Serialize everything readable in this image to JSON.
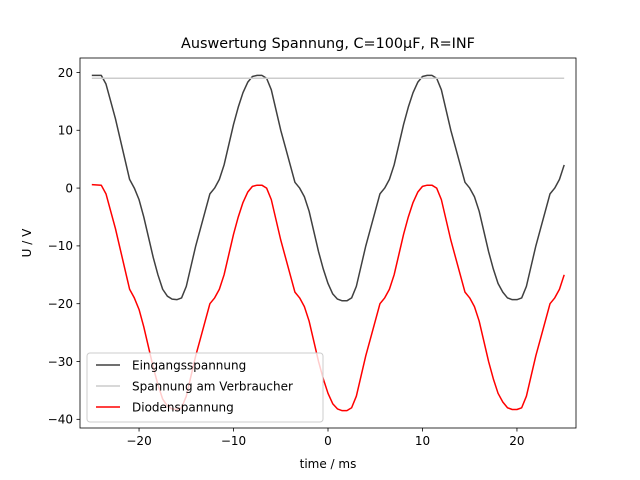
{
  "chart_data": {
    "type": "line",
    "title": "Auswertung Spannung, C=100µF, R=INF",
    "xlabel": "time / ms",
    "ylabel": "U / V",
    "xlim": [
      -26.25,
      26.25
    ],
    "ylim": [
      -41.5,
      22.5
    ],
    "xticks": [
      -20,
      -10,
      0,
      10,
      20
    ],
    "yticks": [
      20,
      10,
      0,
      -10,
      -20,
      -30,
      -40
    ],
    "grid": false,
    "legend_position": "lower left",
    "series": [
      {
        "name": "Eingangsspannung",
        "color": "#404040",
        "x": [
          -25,
          -24,
          -23.5,
          -23,
          -22.5,
          -22,
          -21.5,
          -21,
          -20.5,
          -20,
          -19.5,
          -19,
          -18.5,
          -18,
          -17.5,
          -17,
          -16.5,
          -16,
          -15.5,
          -15,
          -14.5,
          -14,
          -13.5,
          -13,
          -12.5,
          -12,
          -11.5,
          -11,
          -10.5,
          -10,
          -9.5,
          -9,
          -8.5,
          -8,
          -7.5,
          -7,
          -6.5,
          -6,
          -5.5,
          -5,
          -4.5,
          -4,
          -3.5,
          -3,
          -2.5,
          -2,
          -1.5,
          -1,
          -0.5,
          0,
          0.5,
          1,
          1.5,
          2,
          2.5,
          3,
          3.5,
          4,
          4.5,
          5,
          5.5,
          6,
          6.5,
          7,
          7.5,
          8,
          8.5,
          9,
          9.5,
          10,
          10.5,
          11,
          11.5,
          12,
          12.5,
          13,
          13.5,
          14,
          14.5,
          15,
          15.5,
          16,
          16.5,
          17,
          17.5,
          18,
          18.5,
          19,
          19.5,
          20,
          20.5,
          21,
          21.5,
          22,
          22.5,
          23,
          23.5,
          24,
          24.5,
          25
        ],
        "y": [
          19.5,
          19.5,
          18,
          15,
          12,
          8.5,
          5,
          1.5,
          0,
          -2,
          -5,
          -8.5,
          -12,
          -15,
          -17.5,
          -18.7,
          -19.2,
          -19.3,
          -19,
          -17,
          -13.5,
          -10,
          -7,
          -4,
          -1,
          0,
          1.5,
          4,
          7.5,
          11,
          14,
          16.5,
          18.3,
          19.3,
          19.5,
          19.5,
          19,
          17,
          13.5,
          10,
          7,
          4,
          1,
          0,
          -1.5,
          -4,
          -7.5,
          -11,
          -14,
          -16.5,
          -18.3,
          -19.2,
          -19.5,
          -19.5,
          -19,
          -17,
          -13.5,
          -10,
          -7,
          -4,
          -1,
          0,
          1.5,
          4,
          7.5,
          11,
          14,
          16.5,
          18.3,
          19.3,
          19.5,
          19.5,
          19,
          17,
          13.5,
          10,
          7,
          4,
          1,
          0,
          -1.5,
          -4,
          -7.5,
          -11,
          -14,
          -16.5,
          -18,
          -19,
          -19.3,
          -19.3,
          -19,
          -17,
          -13.5,
          -10,
          -7,
          -4,
          -1,
          0,
          1.5,
          4
        ]
      },
      {
        "name": "Spannung am Verbraucher",
        "color": "#cccccc",
        "x": [
          -25,
          25
        ],
        "y": [
          19,
          19
        ]
      },
      {
        "name": "Diodenspannung",
        "color": "#ff0000",
        "x": [
          -25,
          -24,
          -23.5,
          -23,
          -22.5,
          -22,
          -21.5,
          -21,
          -20.5,
          -20,
          -19.5,
          -19,
          -18.5,
          -18,
          -17.5,
          -17,
          -16.5,
          -16,
          -15.5,
          -15,
          -14.5,
          -14,
          -13.5,
          -13,
          -12.5,
          -12,
          -11.5,
          -11,
          -10.5,
          -10,
          -9.5,
          -9,
          -8.5,
          -8,
          -7.5,
          -7,
          -6.5,
          -6,
          -5.5,
          -5,
          -4.5,
          -4,
          -3.5,
          -3,
          -2.5,
          -2,
          -1.5,
          -1,
          -0.5,
          0,
          0.5,
          1,
          1.5,
          2,
          2.5,
          3,
          3.5,
          4,
          4.5,
          5,
          5.5,
          6,
          6.5,
          7,
          7.5,
          8,
          8.5,
          9,
          9.5,
          10,
          10.5,
          11,
          11.5,
          12,
          12.5,
          13,
          13.5,
          14,
          14.5,
          15,
          15.5,
          16,
          16.5,
          17,
          17.5,
          18,
          18.5,
          19,
          19.5,
          20,
          20.5,
          21,
          21.5,
          22,
          22.5,
          23,
          23.5,
          24,
          24.5,
          25
        ],
        "y": [
          0.6,
          0.5,
          -1,
          -4,
          -7,
          -10.5,
          -14,
          -17.5,
          -19,
          -21,
          -24,
          -27.5,
          -31,
          -34,
          -36.5,
          -37.7,
          -38.2,
          -38.3,
          -38,
          -36,
          -32.5,
          -29,
          -26,
          -23,
          -20,
          -19,
          -17.5,
          -15,
          -11.5,
          -8,
          -5,
          -2.5,
          -0.7,
          0.3,
          0.5,
          0.5,
          0,
          -2,
          -5.5,
          -9,
          -12,
          -15,
          -18,
          -19,
          -20.5,
          -23,
          -26.5,
          -30,
          -33,
          -35.5,
          -37.3,
          -38.2,
          -38.5,
          -38.5,
          -38,
          -36,
          -32.5,
          -29,
          -26,
          -23,
          -20,
          -19,
          -17.5,
          -15,
          -11.5,
          -8,
          -5,
          -2.5,
          -0.7,
          0.3,
          0.5,
          0.5,
          0,
          -2,
          -5.5,
          -9,
          -12,
          -15,
          -18,
          -19,
          -20.5,
          -23,
          -26.5,
          -30,
          -33,
          -35.5,
          -37,
          -38,
          -38.3,
          -38.3,
          -38,
          -36,
          -32.5,
          -29,
          -26,
          -23,
          -20,
          -19,
          -17.5,
          -15
        ]
      }
    ]
  }
}
